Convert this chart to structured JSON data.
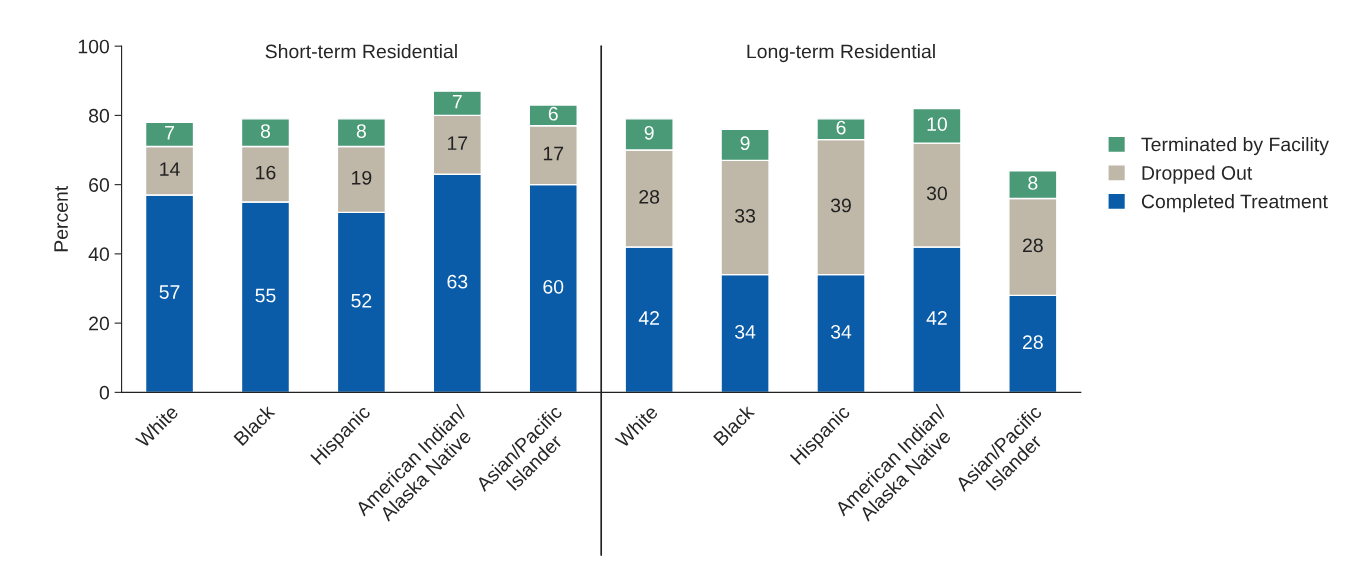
{
  "chart_data": {
    "type": "bar",
    "stacked": true,
    "ylabel": "Percent",
    "categories": [
      "White",
      "Black",
      "Hispanic",
      "American Indian/\nAlaska Native",
      "Asian/Pacific\nIslander",
      "White",
      "Black",
      "Hispanic",
      "American Indian/\nAlaska Native",
      "Asian/Pacific\nIslander"
    ],
    "series": [
      {
        "name": "Completed Treatment",
        "color": "#0a5ca8",
        "values": [
          57,
          55,
          52,
          63,
          60,
          42,
          34,
          34,
          42,
          28
        ]
      },
      {
        "name": "Dropped Out",
        "color": "#bfb7a7",
        "values": [
          14,
          16,
          19,
          17,
          17,
          28,
          33,
          39,
          30,
          28
        ]
      },
      {
        "name": "Terminated by Facility",
        "color": "#4a9a78",
        "values": [
          7,
          8,
          8,
          7,
          6,
          9,
          9,
          6,
          10,
          8
        ]
      }
    ],
    "ylim": [
      0,
      100
    ],
    "yticks": [
      0,
      20,
      40,
      60,
      80,
      100
    ],
    "data_labels": true,
    "grid": false,
    "legend": "right",
    "annotations": [
      "Short-term Residential",
      "Long-term Residential"
    ]
  }
}
